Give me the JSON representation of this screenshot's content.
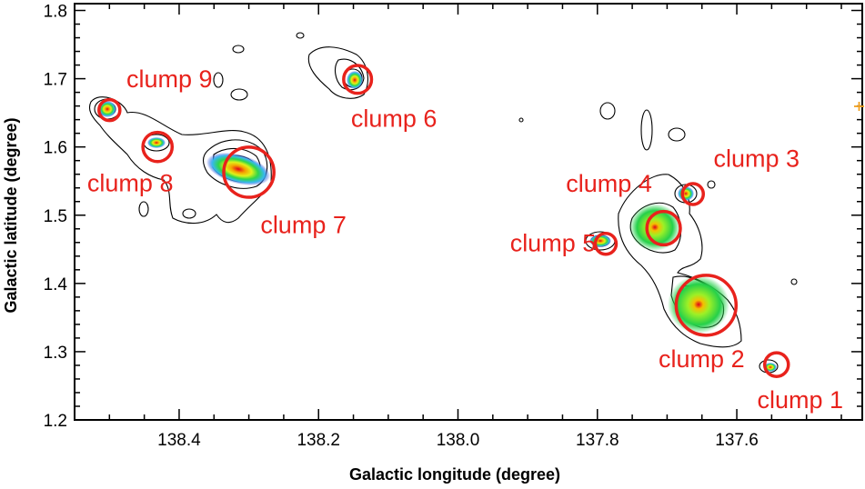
{
  "chart_data": {
    "type": "scatter",
    "title": "",
    "xlabel": "Galactic longitude (degree)",
    "ylabel": "Galactic latitude (degree)",
    "xlim": [
      138.55,
      137.42
    ],
    "ylim": [
      1.2,
      1.81
    ],
    "x_reversed": true,
    "x_ticks": [
      138.4,
      138.2,
      138.0,
      137.8,
      137.6
    ],
    "x_tick_labels": [
      "138.4",
      "138.2",
      "138.0",
      "137.8",
      "137.6"
    ],
    "y_ticks": [
      1.2,
      1.3,
      1.4,
      1.5,
      1.6,
      1.7,
      1.8
    ],
    "y_tick_labels": [
      "1.2",
      "1.3",
      "1.4",
      "1.5",
      "1.6",
      "1.7",
      "1.8"
    ],
    "grid": false,
    "colors": {
      "marker": "#e8221c",
      "label": "#e8221c",
      "contour": "#000000",
      "axis": "#000000"
    },
    "clumps": [
      {
        "name": "clump 1",
        "l": 137.543,
        "b": 1.281,
        "r": 0.017
      },
      {
        "name": "clump 2",
        "l": 137.644,
        "b": 1.368,
        "r": 0.043
      },
      {
        "name": "clump 3",
        "l": 137.663,
        "b": 1.531,
        "r": 0.015
      },
      {
        "name": "clump 4",
        "l": 137.705,
        "b": 1.481,
        "r": 0.024
      },
      {
        "name": "clump 5",
        "l": 137.788,
        "b": 1.458,
        "r": 0.015
      },
      {
        "name": "clump 6",
        "l": 138.144,
        "b": 1.699,
        "r": 0.02
      },
      {
        "name": "clump 7",
        "l": 138.3,
        "b": 1.563,
        "r": 0.036
      },
      {
        "name": "clump 8",
        "l": 138.431,
        "b": 1.6,
        "r": 0.021
      },
      {
        "name": "clump 9",
        "l": 138.5,
        "b": 1.654,
        "r": 0.015
      }
    ]
  }
}
